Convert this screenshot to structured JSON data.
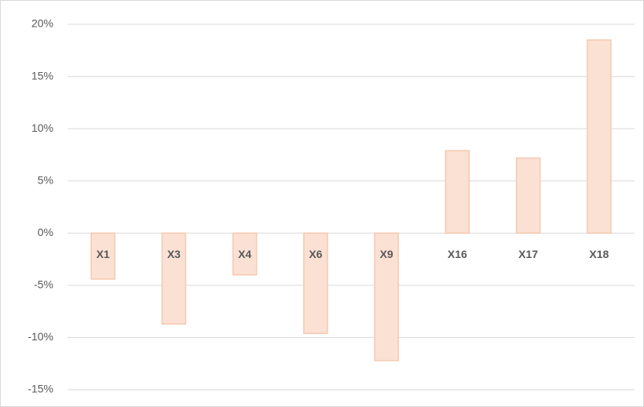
{
  "chart_data": {
    "type": "bar",
    "categories": [
      "X1",
      "X3",
      "X4",
      "X6",
      "X9",
      "X16",
      "X17",
      "X18"
    ],
    "values": [
      -4.4,
      -8.7,
      -4.0,
      -9.6,
      -12.2,
      7.9,
      7.2,
      18.5
    ],
    "color": "#fbe1d4",
    "edge_color": "#f6c8ad",
    "ylim": [
      -15,
      20
    ],
    "yticks": [
      {
        "value": -15,
        "label": "-15%"
      },
      {
        "value": -10,
        "label": "-10%"
      },
      {
        "value": -5,
        "label": "-5%"
      },
      {
        "value": 0,
        "label": "0%"
      },
      {
        "value": 5,
        "label": "5%"
      },
      {
        "value": 10,
        "label": "10%"
      },
      {
        "value": 15,
        "label": "15%"
      },
      {
        "value": 20,
        "label": "20%"
      }
    ],
    "grid": true
  }
}
